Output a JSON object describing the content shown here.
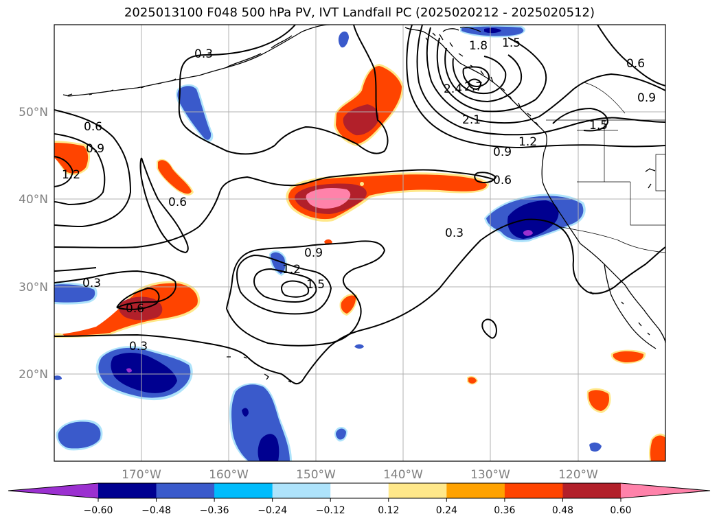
{
  "title": "2025013100 F048 500 hPa PV, IVT Landfall PC (2025020212 - 2025020512)",
  "map": {
    "projection": "cylindrical",
    "lon_range": [
      -180,
      -110
    ],
    "lat_range": [
      10,
      60
    ],
    "gridlines": true,
    "lat_labels": [
      {
        "lat": 50,
        "text": "50°N"
      },
      {
        "lat": 40,
        "text": "40°N"
      },
      {
        "lat": 30,
        "text": "30°N"
      },
      {
        "lat": 20,
        "text": "20°N"
      }
    ],
    "lon_labels": [
      {
        "lon": -170,
        "text": "170°W"
      },
      {
        "lon": -160,
        "text": "160°W"
      },
      {
        "lon": -150,
        "text": "150°W"
      },
      {
        "lon": -140,
        "text": "140°W"
      },
      {
        "lon": -130,
        "text": "130°W"
      },
      {
        "lon": -120,
        "text": "120°W"
      }
    ]
  },
  "colorbar": {
    "extend": "both",
    "colors": [
      "#9b30d0",
      "#000090",
      "#3a5acb",
      "#00bcfc",
      "#aee3fb",
      "#ffffff",
      "#ffe88a",
      "#ffa200",
      "#ff4400",
      "#b2202a",
      "#ff82aa"
    ],
    "ticks": [
      "−0.60",
      "−0.48",
      "−0.36",
      "−0.24",
      "−0.12",
      "0.12",
      "0.24",
      "0.36",
      "0.48",
      "0.60"
    ]
  },
  "contour_labels": [
    "0.3",
    "0.6",
    "0.9",
    "1.2",
    "1.5",
    "1.8",
    "2.1",
    "2.4",
    "0.6",
    "0.9",
    "1.2",
    "0.3",
    "0.9",
    "1.2",
    "1.5",
    "0.6",
    "0.3",
    "0.6",
    "0.3",
    "0.6",
    "0.9",
    "1.2",
    "1.5",
    "0.6",
    "0.9",
    "1.5",
    "2.7"
  ]
}
